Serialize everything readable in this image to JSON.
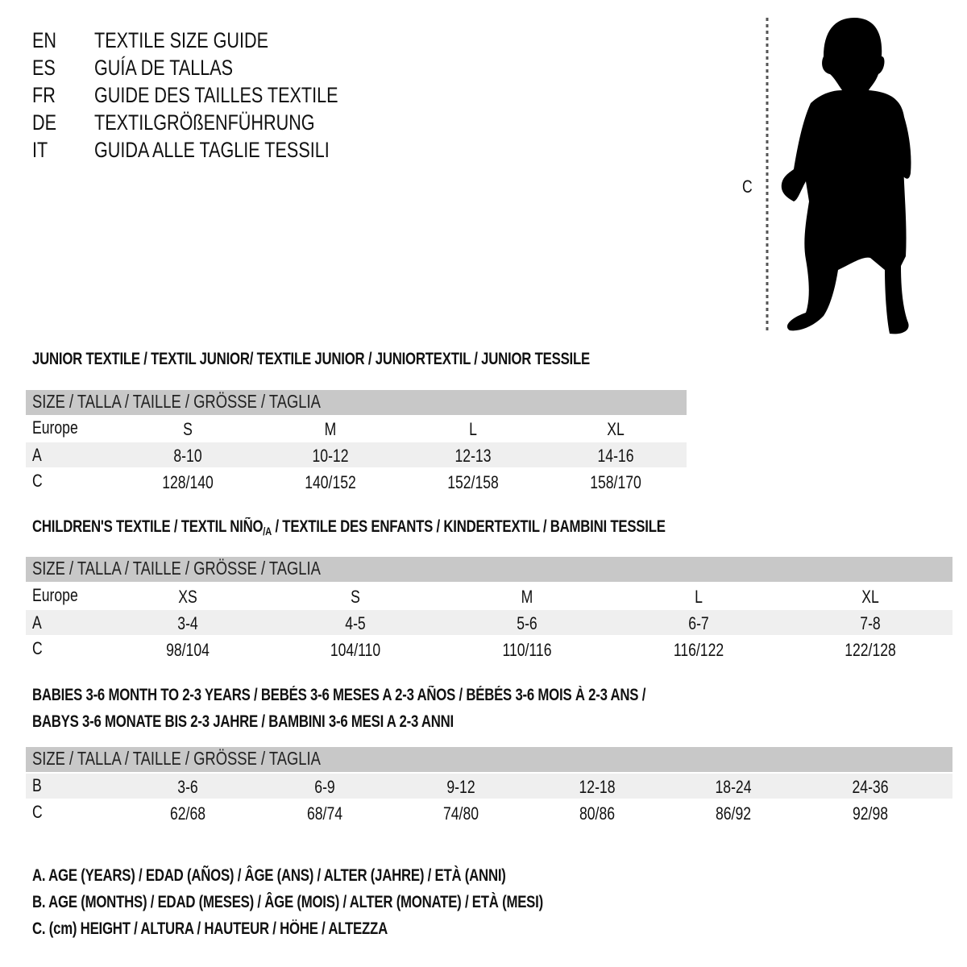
{
  "titles": [
    {
      "lang": "EN",
      "text": "TEXTILE SIZE GUIDE"
    },
    {
      "lang": "ES",
      "text": "GUÍA DE TALLAS"
    },
    {
      "lang": "FR",
      "text": "GUIDE DES TAILLES TEXTILE"
    },
    {
      "lang": "DE",
      "text": "TEXTILGRÖßENFÜHRUNG"
    },
    {
      "lang": "IT",
      "text": "GUIDA ALLE TAGLIE TESSILI"
    }
  ],
  "figure": {
    "height_label": "C",
    "icon": "child-silhouette"
  },
  "size_header": "SIZE / TALLA / TAILLE / GRÖSSE / TAGLIA",
  "junior": {
    "heading": "JUNIOR TEXTILE / TEXTIL JUNIOR/ TEXTILE JUNIOR / JUNIORTEXTIL / JUNIOR TESSILE",
    "rows": [
      {
        "label": "Europe",
        "values": [
          "S",
          "M",
          "L",
          "XL"
        ]
      },
      {
        "label": "A",
        "values": [
          "8-10",
          "10-12",
          "12-13",
          "14-16"
        ]
      },
      {
        "label": "C",
        "values": [
          "128/140",
          "140/152",
          "152/158",
          "158/170"
        ]
      }
    ]
  },
  "children": {
    "heading_a": "CHILDREN'S TEXTILE / TEXTIL NIÑO",
    "heading_sub": "/A",
    "heading_b": " / TEXTILE DES ENFANTS / KINDERTEXTIL / BAMBINI TESSILE",
    "rows": [
      {
        "label": "Europe",
        "values": [
          "XS",
          "S",
          "M",
          "L",
          "XL"
        ]
      },
      {
        "label": "A",
        "values": [
          "3-4",
          "4-5",
          "5-6",
          "6-7",
          "7-8"
        ]
      },
      {
        "label": "C",
        "values": [
          "98/104",
          "104/110",
          "110/116",
          "116/122",
          "122/128"
        ]
      }
    ]
  },
  "babies": {
    "heading_1": "BABIES 3-6 MONTH TO 2-3 YEARS / BEBÉS 3-6 MESES A 2-3 AÑOS / BÉBÉS 3-6 MOIS À 2-3 ANS /",
    "heading_2": "BABYS 3-6 MONATE BIS 2-3 JAHRE / BAMBINI 3-6 MESI A 2-3 ANNI",
    "rows": [
      {
        "label": "B",
        "values": [
          "3-6",
          "6-9",
          "9-12",
          "12-18",
          "18-24",
          "24-36"
        ]
      },
      {
        "label": "C",
        "values": [
          "62/68",
          "68/74",
          "74/80",
          "80/86",
          "86/92",
          "92/98"
        ]
      }
    ]
  },
  "legend": [
    "A. AGE (YEARS) / EDAD (AÑOS) / ÂGE (ANS) / ALTER (JAHRE) / ETÀ (ANNI)",
    "B. AGE (MONTHS) / EDAD (MESES) / ÂGE (MOIS) / ALTER (MONATE) / ETÀ (MESI)",
    "C. (cm) HEIGHT / ALTURA / HAUTEUR / HÖHE / ALTEZZA"
  ],
  "colors": {
    "header_bar": "#c8c8c8",
    "row_shade": "#efefef"
  }
}
